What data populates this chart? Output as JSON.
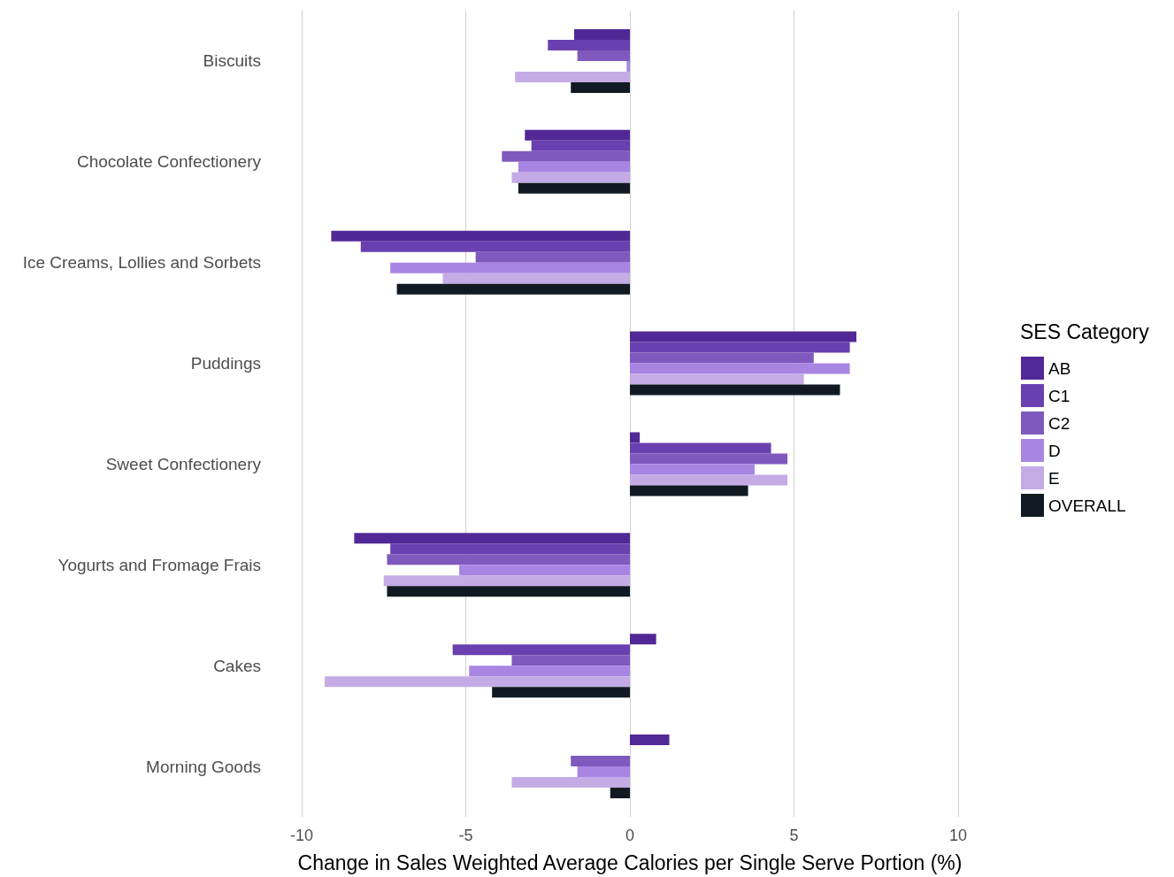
{
  "chart_data": {
    "type": "bar",
    "orientation": "horizontal",
    "xlabel": "Change in Sales Weighted Average Calories per Single Serve Portion (%)",
    "legend_title": "SES Category",
    "legend": "right",
    "grid": "x",
    "categories": [
      "Biscuits",
      "Chocolate Confectionery",
      "Ice Creams, Lollies and Sorbets",
      "Puddings",
      "Sweet Confectionery",
      "Yogurts and Fromage Frais",
      "Cakes",
      "Morning Goods"
    ],
    "xlim": [
      -10,
      10
    ],
    "xticks": [
      -10,
      -5,
      0,
      5,
      10
    ],
    "series": [
      {
        "name": "AB",
        "color": "#522896",
        "values": [
          -1.7,
          -3.2,
          -9.1,
          6.9,
          0.3,
          -8.4,
          0.8,
          1.2
        ]
      },
      {
        "name": "C1",
        "color": "#6a40b0",
        "values": [
          -2.5,
          -3.0,
          -8.2,
          6.7,
          4.3,
          -7.3,
          -5.4,
          null
        ]
      },
      {
        "name": "C2",
        "color": "#7f59bd",
        "values": [
          -1.6,
          -3.9,
          -4.7,
          5.6,
          4.8,
          -7.4,
          -3.6,
          -1.8
        ]
      },
      {
        "name": "D",
        "color": "#a885e3",
        "values": [
          -0.1,
          -3.4,
          -7.3,
          6.7,
          3.8,
          -5.2,
          -4.9,
          -1.6
        ]
      },
      {
        "name": "E",
        "color": "#c4abe6",
        "values": [
          -3.5,
          -3.6,
          -5.7,
          5.3,
          4.8,
          -7.5,
          -9.3,
          -3.6
        ]
      },
      {
        "name": "OVERALL",
        "color": "#111a22",
        "values": [
          -1.8,
          -3.4,
          -7.1,
          6.4,
          3.6,
          -7.4,
          -4.2,
          -0.6
        ]
      }
    ]
  }
}
